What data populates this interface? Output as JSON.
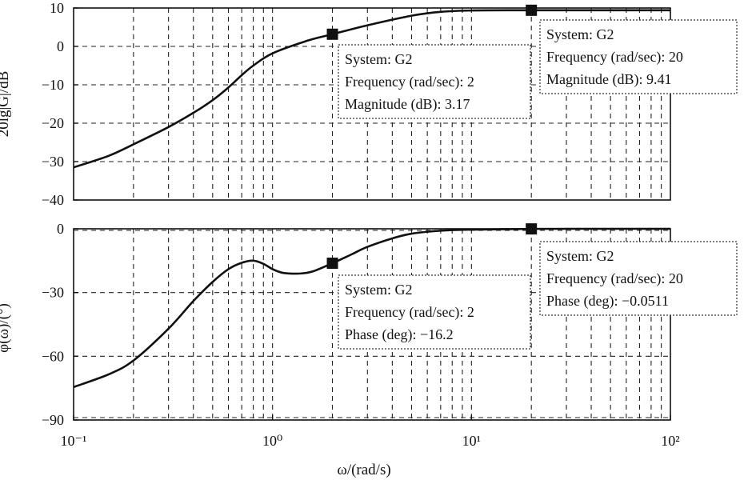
{
  "chart_data": [
    {
      "type": "line",
      "panel": "magnitude",
      "ylabel": "20lg|G|/dB",
      "xscale": "log",
      "xlim": [
        0.1,
        100
      ],
      "ylim": [
        -40,
        10
      ],
      "yticks": [
        10,
        0,
        -10,
        -20,
        -30,
        -40
      ],
      "grid": true,
      "series": [
        {
          "x": [
            0.1,
            0.15,
            0.2,
            0.3,
            0.4,
            0.5,
            0.6,
            0.7,
            0.8,
            1.0,
            1.5,
            2.0,
            3.0,
            5.0,
            7.0,
            10,
            20,
            50,
            100
          ],
          "values": [
            -31.5,
            -28.5,
            -25.5,
            -21.0,
            -17.3,
            -14.0,
            -10.7,
            -7.5,
            -5.0,
            -1.8,
            1.5,
            3.17,
            5.5,
            8.0,
            9.0,
            9.35,
            9.41,
            9.42,
            9.42
          ]
        }
      ],
      "annotations": [
        {
          "x": 2,
          "y": 3.17,
          "lines": [
            "System: G2",
            "Frequency (rad/sec): 2",
            "Magnitude (dB): 3.17"
          ]
        },
        {
          "x": 20,
          "y": 9.41,
          "lines": [
            "System: G2",
            "Frequency (rad/sec): 20",
            "Magnitude (dB): 9.41"
          ]
        }
      ]
    },
    {
      "type": "line",
      "panel": "phase",
      "ylabel": "φ(ω)/(°)",
      "xlabel": "ω/(rad/s)",
      "xscale": "log",
      "xlim": [
        0.1,
        100
      ],
      "ylim": [
        -90,
        0
      ],
      "yticks": [
        0,
        -30,
        -60,
        -90
      ],
      "xticks": [
        "10⁻¹",
        "10⁰",
        "10¹",
        "10²"
      ],
      "grid": true,
      "series": [
        {
          "x": [
            0.1,
            0.15,
            0.2,
            0.3,
            0.4,
            0.5,
            0.6,
            0.7,
            0.8,
            0.9,
            1.0,
            1.1,
            1.2,
            1.4,
            1.6,
            2.0,
            2.5,
            3.0,
            4.0,
            5.0,
            7.0,
            10,
            20,
            50,
            100
          ],
          "values": [
            -74.5,
            -68.5,
            -62.0,
            -47.0,
            -34.0,
            -25.0,
            -19.0,
            -16.0,
            -15.0,
            -16.5,
            -19.0,
            -20.5,
            -21.0,
            -21.0,
            -20.0,
            -16.2,
            -12.0,
            -8.5,
            -4.5,
            -2.3,
            -0.9,
            -0.4,
            -0.0511,
            0,
            0
          ]
        }
      ],
      "annotations": [
        {
          "x": 2,
          "y": -16.2,
          "lines": [
            "System: G2",
            "Frequency (rad/sec): 2",
            "Phase (deg): −16.2"
          ]
        },
        {
          "x": 20,
          "y": -0.0511,
          "lines": [
            "System: G2",
            "Frequency (rad/sec): 20",
            "Phase (deg): −0.0511"
          ]
        }
      ]
    }
  ]
}
